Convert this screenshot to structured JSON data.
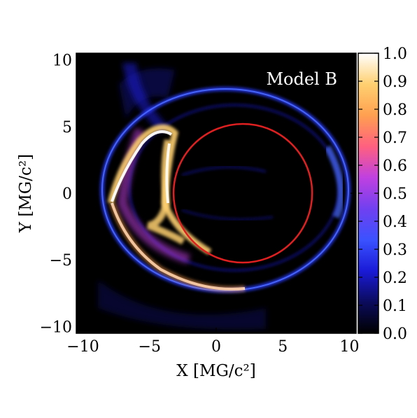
{
  "chart_data": {
    "type": "heatmap",
    "title": "",
    "annotation": "Model B",
    "xlabel": "X [MG/c²]",
    "ylabel": "Y [MG/c²]",
    "xlim": [
      -10.5,
      10.5
    ],
    "ylim": [
      -10.5,
      10.5
    ],
    "x_ticks": [
      -10,
      -5,
      0,
      5,
      10
    ],
    "y_ticks": [
      -10,
      -5,
      0,
      5,
      10
    ],
    "x_tick_labels": [
      "−10",
      "−5",
      "0",
      "5",
      "10"
    ],
    "y_tick_labels": [
      "−10",
      "−5",
      "0",
      "5",
      "10"
    ],
    "colorbar": {
      "range": [
        0.0,
        1.0
      ],
      "ticks": [
        0.0,
        0.1,
        0.2,
        0.3,
        0.4,
        0.5,
        0.6,
        0.7,
        0.8,
        0.9,
        1.0
      ],
      "tick_labels": [
        "0.0",
        "0.1",
        "0.2",
        "0.3",
        "0.4",
        "0.5",
        "0.6",
        "0.7",
        "0.8",
        "0.9",
        "1.0"
      ],
      "colormap": [
        "#000000",
        "#0b0b5c",
        "#1a1ad6",
        "#3a52ff",
        "#7040f0",
        "#c040e0",
        "#ff6080",
        "#ffa050",
        "#ffd070",
        "#ffffff"
      ]
    },
    "overlay_circle": {
      "center": [
        2.0,
        0.0
      ],
      "radius": 5.2,
      "color": "#e02020"
    },
    "features": [
      {
        "name": "outer-ring",
        "center": [
          0.5,
          0.3
        ],
        "radius": 7.6,
        "intensity": 0.3
      },
      {
        "name": "bright-left-arc",
        "x_range": [
          -8,
          -2
        ],
        "y_range": [
          -7,
          3
        ],
        "intensity": 1.0
      }
    ],
    "grid": false
  }
}
